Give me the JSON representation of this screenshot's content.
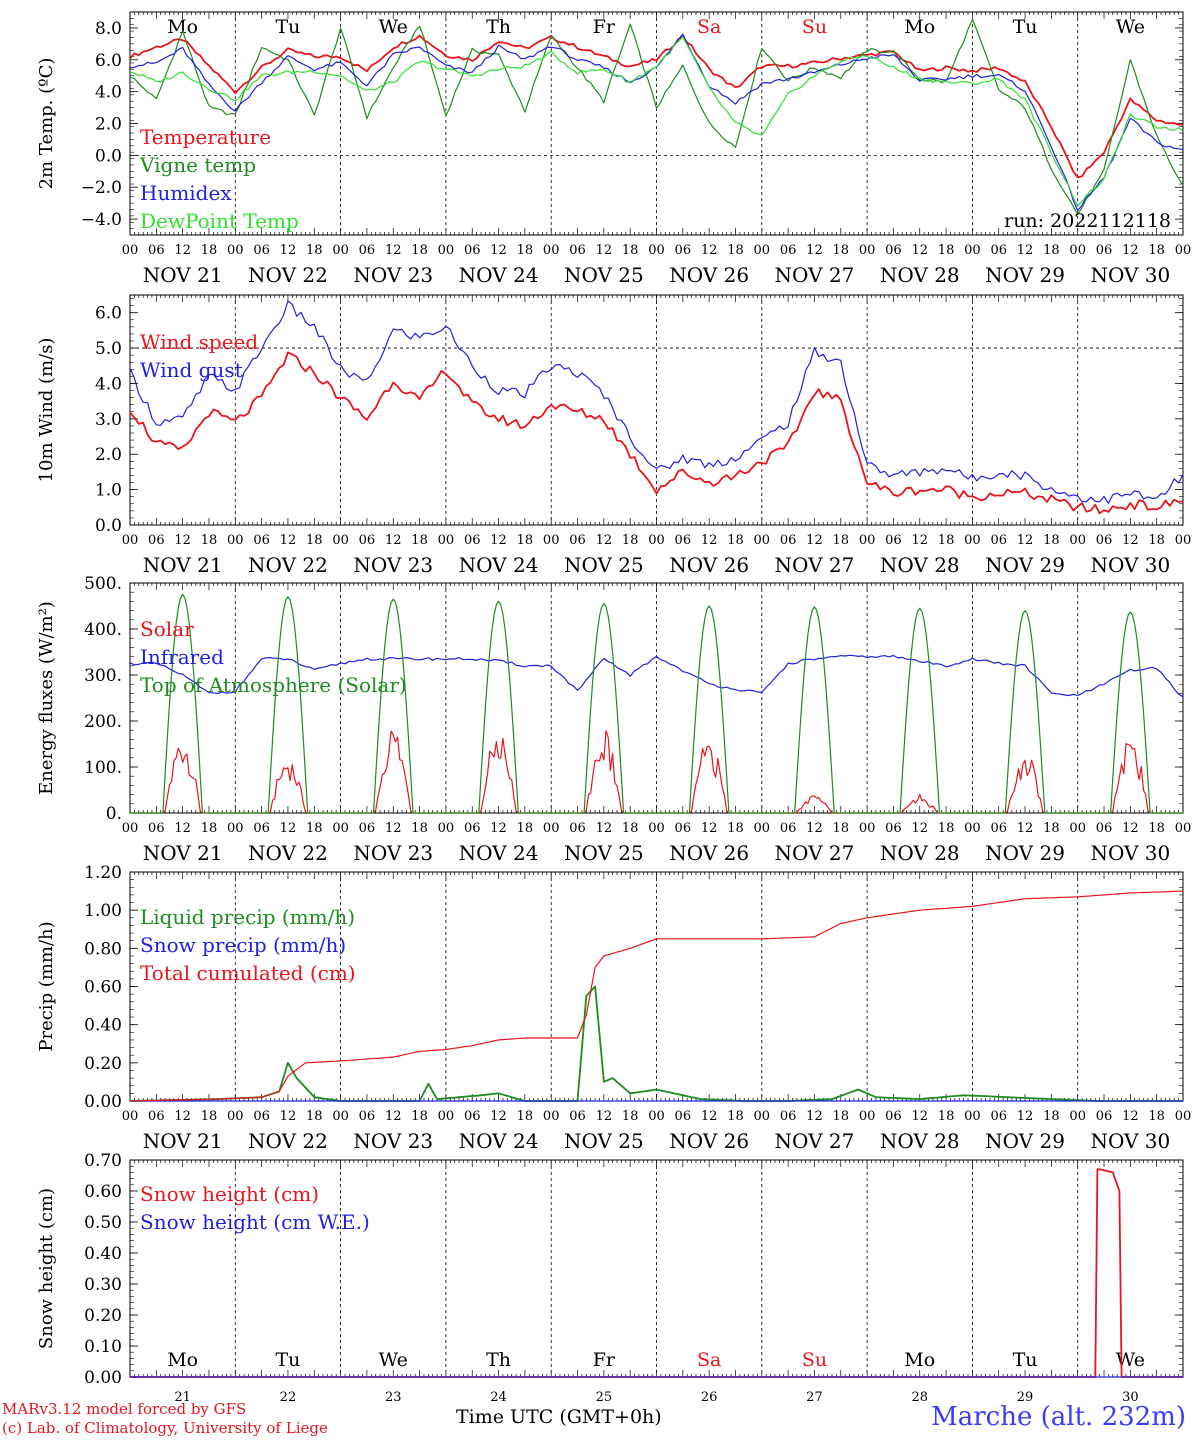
{
  "location": "Marche (alt. 232m)",
  "footer": {
    "model": "MARv3.12 model forced by GFS",
    "lab": "(c) Lab. of Climatology, University of Liege",
    "xlabel": "Time UTC (GMT+0h)"
  },
  "time_axis": {
    "days": [
      "NOV 21",
      "NOV 22",
      "NOV 23",
      "NOV 24",
      "NOV 25",
      "NOV 26",
      "NOV 27",
      "NOV 28",
      "NOV 29",
      "NOV 30"
    ],
    "weekdays": [
      "Mo",
      "Tu",
      "We",
      "Th",
      "Fr",
      "Sa",
      "Su",
      "Mo",
      "Tu",
      "We"
    ],
    "weekday_colors": [
      "#000000",
      "#000000",
      "#000000",
      "#000000",
      "#000000",
      "#e8141e",
      "#e8141e",
      "#000000",
      "#000000",
      "#000000"
    ],
    "hour_ticks": [
      "00",
      "06",
      "12",
      "18"
    ],
    "day_numbers": [
      "21",
      "22",
      "23",
      "24",
      "25",
      "26",
      "27",
      "28",
      "29",
      "30"
    ]
  },
  "chart_data": [
    {
      "type": "line",
      "ylabel": "2m Temp. (ºC)",
      "ylim": [
        -5,
        9
      ],
      "yticks": [
        "8.0",
        "6.0",
        "4.0",
        "2.0",
        "0.0",
        "−2.0",
        "−4.0"
      ],
      "ytick_values": [
        8,
        6,
        4,
        2,
        0,
        -2,
        -4
      ],
      "hline": 0,
      "annotation": "run: 2022112118",
      "x_unit": "hours since NOV 21 00 UTC",
      "series": [
        {
          "name": "Temperature",
          "color": "#e8141e",
          "x": [
            0,
            6,
            12,
            18,
            24,
            30,
            36,
            42,
            48,
            54,
            60,
            66,
            72,
            78,
            84,
            90,
            96,
            102,
            108,
            114,
            120,
            126,
            132,
            138,
            144,
            150,
            156,
            162,
            168,
            174,
            180,
            186,
            192,
            198,
            204,
            210,
            216,
            222,
            228,
            234,
            240
          ],
          "y": [
            6.2,
            6.8,
            7.3,
            5.6,
            4.0,
            5.5,
            6.6,
            6.2,
            6.2,
            5.3,
            6.8,
            7.5,
            6.3,
            6.0,
            7.2,
            6.7,
            7.4,
            6.8,
            6.2,
            5.6,
            6.0,
            7.5,
            5.4,
            4.2,
            5.6,
            5.6,
            5.8,
            6.1,
            6.3,
            6.5,
            5.3,
            5.5,
            5.3,
            5.5,
            4.6,
            1.8,
            -1.5,
            0.2,
            3.5,
            2.2,
            1.9
          ]
        },
        {
          "name": "Vigne temp",
          "color": "#1e8c1e",
          "x": [
            0,
            6,
            12,
            18,
            24,
            30,
            36,
            42,
            48,
            54,
            60,
            66,
            72,
            78,
            84,
            90,
            96,
            102,
            108,
            114,
            120,
            126,
            132,
            138,
            144,
            150,
            156,
            162,
            168,
            174,
            180,
            186,
            192,
            198,
            204,
            210,
            216,
            222,
            228,
            234,
            240
          ],
          "y": [
            5.0,
            3.5,
            7.8,
            3.0,
            2.5,
            6.8,
            6.0,
            2.5,
            8.0,
            2.4,
            5.5,
            8.2,
            2.5,
            6.6,
            6.3,
            2.8,
            7.5,
            5.5,
            3.4,
            8.2,
            3.0,
            5.6,
            2.0,
            0.5,
            6.8,
            4.7,
            5.5,
            4.9,
            6.6,
            6.5,
            4.8,
            4.6,
            8.5,
            4.1,
            3.0,
            -0.8,
            -3.7,
            -1.0,
            6.0,
            1.2,
            -2.0
          ]
        },
        {
          "name": "Humidex",
          "color": "#2020e0",
          "x": [
            0,
            6,
            12,
            18,
            24,
            30,
            36,
            42,
            48,
            54,
            60,
            66,
            72,
            78,
            84,
            90,
            96,
            102,
            108,
            114,
            120,
            126,
            132,
            138,
            144,
            150,
            156,
            162,
            168,
            174,
            180,
            186,
            192,
            198,
            204,
            210,
            216,
            222,
            228,
            234,
            240
          ],
          "y": [
            5.6,
            5.8,
            6.7,
            4.4,
            2.8,
            4.6,
            6.2,
            5.4,
            5.8,
            4.4,
            6.3,
            6.8,
            5.6,
            5.2,
            6.8,
            6.0,
            6.9,
            6.0,
            5.5,
            4.6,
            5.5,
            7.6,
            4.4,
            3.3,
            4.5,
            4.8,
            5.2,
            5.7,
            6.1,
            6.3,
            4.7,
            4.8,
            5.0,
            5.0,
            4.1,
            0.6,
            -3.4,
            -1.4,
            2.3,
            0.8,
            0.3
          ]
        },
        {
          "name": "DewPoint Temp",
          "color": "#30e030",
          "x": [
            0,
            6,
            12,
            18,
            24,
            30,
            36,
            42,
            48,
            54,
            60,
            66,
            72,
            78,
            84,
            90,
            96,
            102,
            108,
            114,
            120,
            126,
            132,
            138,
            144,
            150,
            156,
            162,
            168,
            174,
            180,
            186,
            192,
            198,
            204,
            210,
            216,
            222,
            228,
            234,
            240
          ],
          "y": [
            5.3,
            4.6,
            5.2,
            4.2,
            3.5,
            5.0,
            5.2,
            5.3,
            5.0,
            4.0,
            4.6,
            5.9,
            5.4,
            5.0,
            5.4,
            5.6,
            6.4,
            5.2,
            5.4,
            4.6,
            5.6,
            7.4,
            4.2,
            2.0,
            1.2,
            3.8,
            5.0,
            5.9,
            6.3,
            5.5,
            4.8,
            4.6,
            4.5,
            4.8,
            3.5,
            0.2,
            -3.1,
            -1.5,
            2.5,
            1.8,
            1.6
          ]
        }
      ]
    },
    {
      "type": "line",
      "ylabel": "10m Wind (m/s)",
      "ylim": [
        0,
        6.5
      ],
      "yticks": [
        "6.0",
        "5.0",
        "4.0",
        "3.0",
        "2.0",
        "1.0",
        "0.0"
      ],
      "ytick_values": [
        6,
        5,
        4,
        3,
        2,
        1,
        0
      ],
      "hline": 5,
      "series": [
        {
          "name": "Wind speed",
          "color": "#e8141e",
          "x": [
            0,
            6,
            12,
            18,
            24,
            30,
            36,
            42,
            48,
            54,
            60,
            66,
            72,
            78,
            84,
            90,
            96,
            102,
            108,
            114,
            120,
            126,
            132,
            138,
            144,
            150,
            156,
            162,
            168,
            174,
            180,
            186,
            192,
            198,
            204,
            210,
            216,
            222,
            228,
            234,
            240
          ],
          "y": [
            3.3,
            2.3,
            2.1,
            3.2,
            2.9,
            3.6,
            4.8,
            4.3,
            3.6,
            3.0,
            4.1,
            3.5,
            4.4,
            3.4,
            3.0,
            2.8,
            3.4,
            3.2,
            3.0,
            2.0,
            1.0,
            1.5,
            1.2,
            1.4,
            1.8,
            2.2,
            3.8,
            3.5,
            1.2,
            0.9,
            1.0,
            1.0,
            0.8,
            0.9,
            0.9,
            0.7,
            0.5,
            0.4,
            0.6,
            0.5,
            0.7
          ]
        },
        {
          "name": "Wind gust",
          "color": "#2020e0",
          "x": [
            0,
            6,
            12,
            18,
            24,
            30,
            36,
            42,
            48,
            54,
            60,
            66,
            72,
            78,
            84,
            90,
            96,
            102,
            108,
            114,
            120,
            126,
            132,
            138,
            144,
            150,
            156,
            162,
            168,
            174,
            180,
            186,
            192,
            198,
            204,
            210,
            216,
            222,
            228,
            234,
            240
          ],
          "y": [
            4.3,
            2.9,
            3.0,
            4.2,
            3.8,
            5.0,
            6.2,
            5.6,
            4.4,
            4.0,
            5.5,
            5.3,
            5.6,
            4.5,
            3.8,
            3.7,
            4.5,
            4.3,
            3.7,
            2.5,
            1.5,
            1.9,
            1.7,
            1.9,
            2.4,
            2.9,
            4.9,
            4.6,
            1.7,
            1.4,
            1.5,
            1.6,
            1.3,
            1.5,
            1.4,
            1.0,
            0.8,
            0.7,
            0.9,
            0.7,
            1.4
          ]
        }
      ]
    },
    {
      "type": "line",
      "ylabel": "Energy fluxes (W/m²)",
      "ylim": [
        0,
        500
      ],
      "yticks": [
        "500.",
        "400.",
        "300.",
        "200.",
        "100.",
        "0."
      ],
      "ytick_values": [
        500,
        400,
        300,
        200,
        100,
        0
      ],
      "series": [
        {
          "name": "Solar",
          "color": "#e8141e",
          "profile": "solar",
          "daily_peaks": [
            180,
            130,
            200,
            190,
            190,
            170,
            40,
            40,
            140,
            180
          ]
        },
        {
          "name": "Infrared",
          "color": "#2020e0",
          "x": [
            0,
            6,
            12,
            18,
            24,
            30,
            36,
            42,
            48,
            54,
            60,
            66,
            72,
            78,
            84,
            90,
            96,
            102,
            108,
            114,
            120,
            126,
            132,
            138,
            144,
            150,
            156,
            162,
            168,
            174,
            180,
            186,
            192,
            198,
            204,
            210,
            216,
            222,
            228,
            234,
            240
          ],
          "y": [
            325,
            325,
            300,
            260,
            265,
            335,
            335,
            310,
            325,
            335,
            335,
            335,
            335,
            335,
            330,
            320,
            320,
            265,
            335,
            300,
            340,
            310,
            280,
            270,
            260,
            325,
            335,
            340,
            340,
            340,
            330,
            320,
            335,
            325,
            320,
            260,
            255,
            280,
            310,
            315,
            250
          ]
        },
        {
          "name": "Top of Atmosphere (Solar)",
          "color": "#1e8c1e",
          "profile": "toa",
          "daily_peaks": [
            475,
            470,
            465,
            460,
            455,
            450,
            448,
            445,
            440,
            437
          ]
        }
      ]
    },
    {
      "type": "line",
      "ylabel": "Precip (mm/h)",
      "ylim": [
        0,
        1.2
      ],
      "yticks": [
        "1.20",
        "1.00",
        "0.80",
        "0.60",
        "0.40",
        "0.20",
        "0.00"
      ],
      "ytick_values": [
        1.2,
        1.0,
        0.8,
        0.6,
        0.4,
        0.2,
        0.0
      ],
      "series": [
        {
          "name": "Liquid precip (mm/h)",
          "color": "#1e8c1e",
          "x": [
            0,
            20,
            30,
            34,
            36,
            38,
            42,
            48,
            66,
            68,
            70,
            80,
            84,
            90,
            96,
            102,
            104,
            106,
            108,
            110,
            114,
            120,
            130,
            140,
            150,
            160,
            166,
            170,
            180,
            190,
            200,
            210,
            220,
            240
          ],
          "y": [
            0,
            0.01,
            0.02,
            0.05,
            0.2,
            0.12,
            0.02,
            0,
            0,
            0.09,
            0.01,
            0.03,
            0.04,
            0,
            0,
            0,
            0.55,
            0.6,
            0.1,
            0.12,
            0.04,
            0.06,
            0.01,
            0,
            0,
            0.01,
            0.06,
            0.02,
            0.01,
            0.03,
            0.02,
            0.01,
            0,
            0
          ]
        },
        {
          "name": "Snow precip (mm/h)",
          "color": "#2020e0",
          "x": [
            0,
            240
          ],
          "y": [
            0,
            0
          ]
        },
        {
          "name": "Total cumulated (cm)",
          "color": "#e8141e",
          "x": [
            0,
            20,
            30,
            34,
            36,
            40,
            48,
            60,
            66,
            72,
            78,
            84,
            90,
            96,
            102,
            104,
            106,
            108,
            114,
            120,
            126,
            132,
            144,
            156,
            162,
            168,
            180,
            192,
            204,
            216,
            228,
            240
          ],
          "y": [
            0,
            0.01,
            0.02,
            0.05,
            0.13,
            0.2,
            0.21,
            0.23,
            0.26,
            0.27,
            0.29,
            0.32,
            0.33,
            0.33,
            0.33,
            0.45,
            0.7,
            0.76,
            0.8,
            0.85,
            0.85,
            0.85,
            0.85,
            0.86,
            0.93,
            0.96,
            1.0,
            1.02,
            1.06,
            1.07,
            1.09,
            1.1
          ]
        }
      ]
    },
    {
      "type": "line",
      "ylabel": "Snow height (cm)",
      "ylim": [
        0,
        0.7
      ],
      "yticks": [
        "0.70",
        "0.60",
        "0.50",
        "0.40",
        "0.30",
        "0.20",
        "0.10",
        "0.00"
      ],
      "ytick_values": [
        0.7,
        0.6,
        0.5,
        0.4,
        0.3,
        0.2,
        0.1,
        0.0
      ],
      "series": [
        {
          "name": "Snow height (cm)",
          "color": "#e8141e",
          "x": [
            0,
            220,
            220.5,
            221,
            224,
            225.5,
            226,
            240
          ],
          "y": [
            0,
            0,
            0.67,
            0.67,
            0.66,
            0.6,
            0,
            0
          ]
        },
        {
          "name": "Snow height (cm W.E.)",
          "color": "#2020e0",
          "x": [
            0,
            240
          ],
          "y": [
            0,
            0
          ]
        }
      ]
    }
  ]
}
